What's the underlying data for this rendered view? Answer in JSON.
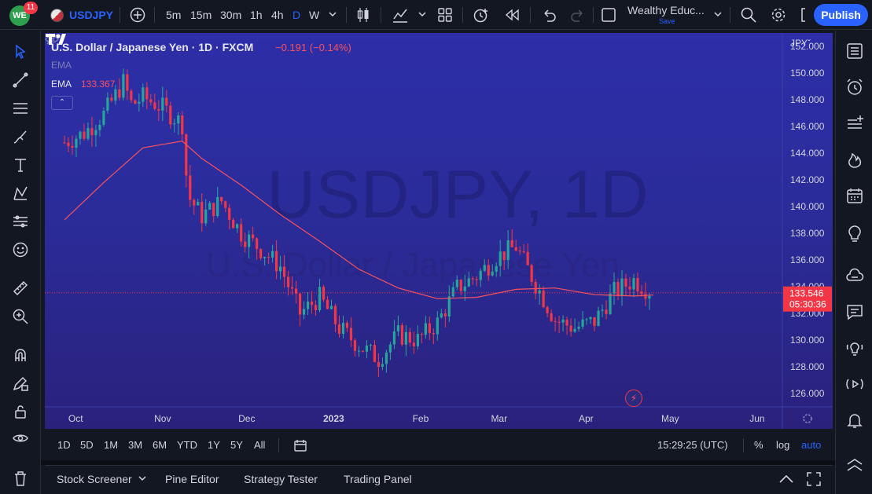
{
  "toolbar": {
    "notification_count": "11",
    "avatar_initials": "WE",
    "symbol": "USDJPY",
    "intervals": [
      "5m",
      "15m",
      "30m",
      "1h",
      "4h",
      "D",
      "W"
    ],
    "active_interval": "D",
    "layout_name": "Wealthy Educ...",
    "layout_save": "Save",
    "publish_label": "Publish"
  },
  "legend": {
    "title": "U.S. Dollar / Japanese Yen · 1D · FXCM",
    "change": "−0.191 (−0.14%)",
    "ema_hidden_label": "EMA",
    "ema_label": "EMA",
    "ema_value": "133.367"
  },
  "watermark": {
    "line1": "USDJPY, 1D",
    "line2": "U.S. Dollar / Japanese Yen"
  },
  "price_axis": {
    "currency": "JPY",
    "ticks": [
      "152.000",
      "150.000",
      "148.000",
      "146.000",
      "144.000",
      "142.000",
      "140.000",
      "138.000",
      "136.000",
      "134.000",
      "132.000",
      "130.000",
      "128.000",
      "126.000"
    ],
    "current_price": "133.546",
    "countdown": "05:30:36"
  },
  "time_axis": {
    "labels": [
      "Oct",
      "Nov",
      "Dec",
      "2023",
      "Feb",
      "Mar",
      "Apr",
      "May",
      "Jun"
    ]
  },
  "ranges": {
    "items": [
      "1D",
      "5D",
      "1M",
      "3M",
      "6M",
      "YTD",
      "1Y",
      "5Y",
      "All"
    ],
    "clock": "15:29:25 (UTC)",
    "percent": "%",
    "log": "log",
    "auto": "auto"
  },
  "panels": {
    "items": [
      "Stock Screener",
      "Pine Editor",
      "Strategy Tester",
      "Trading Panel"
    ]
  },
  "colors": {
    "up": "#26a69a",
    "down": "#f23645",
    "ema": "#f7525f",
    "accent": "#2962ff"
  },
  "chart_data": {
    "type": "line",
    "ylim": [
      125,
      153
    ],
    "series": [
      {
        "name": "U.S. Dollar / Japanese Yen · 1D · FXCM",
        "style": "candlestick",
        "x": [
          "2022-09-27",
          "2022-10-04",
          "2022-10-11",
          "2022-10-18",
          "2022-10-21",
          "2022-10-25",
          "2022-11-01",
          "2022-11-08",
          "2022-11-10",
          "2022-11-15",
          "2022-11-22",
          "2022-11-29",
          "2022-12-06",
          "2022-12-13",
          "2022-12-20",
          "2022-12-27",
          "2023-01-03",
          "2023-01-10",
          "2023-01-17",
          "2023-01-24",
          "2023-01-31",
          "2023-02-07",
          "2023-02-14",
          "2023-02-21",
          "2023-02-28",
          "2023-03-07",
          "2023-03-14",
          "2023-03-21",
          "2023-03-28",
          "2023-04-04",
          "2023-04-11",
          "2023-04-18",
          "2023-04-25"
        ],
        "values": [
          144.8,
          145.5,
          146.9,
          149.3,
          147.6,
          148.2,
          147.4,
          146.2,
          140.8,
          139.3,
          140.4,
          138.0,
          136.8,
          135.5,
          132.0,
          133.2,
          130.9,
          129.6,
          128.6,
          130.4,
          130.0,
          131.3,
          133.9,
          134.8,
          136.2,
          137.0,
          134.2,
          131.5,
          130.9,
          131.4,
          133.6,
          134.5,
          133.5
        ]
      },
      {
        "name": "EMA",
        "x": [
          "2022-09-27",
          "2022-10-11",
          "2022-10-25",
          "2022-11-08",
          "2022-11-15",
          "2022-11-29",
          "2022-12-13",
          "2022-12-27",
          "2023-01-10",
          "2023-01-24",
          "2023-02-07",
          "2023-02-21",
          "2023-03-07",
          "2023-03-21",
          "2023-04-04",
          "2023-04-18",
          "2023-04-25"
        ],
        "values": [
          139.0,
          141.8,
          144.4,
          144.9,
          143.6,
          141.6,
          139.4,
          137.4,
          135.3,
          133.9,
          133.1,
          133.2,
          133.8,
          133.9,
          133.4,
          133.3,
          133.37
        ]
      }
    ]
  }
}
